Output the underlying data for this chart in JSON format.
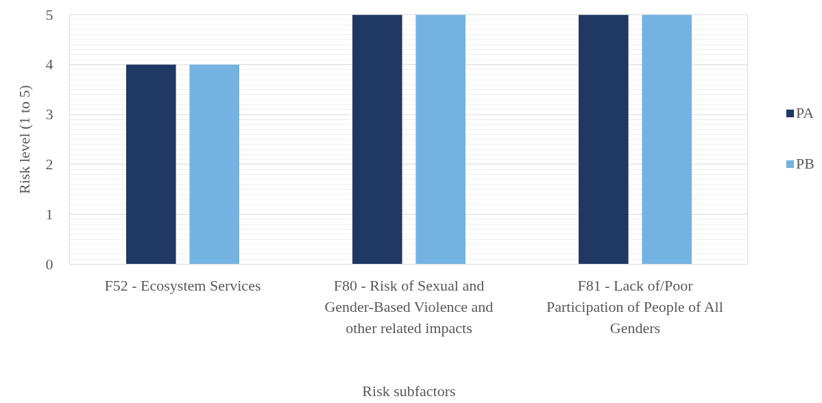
{
  "chart_data": {
    "type": "bar",
    "xlabel": "Risk subfactors",
    "ylabel": "Risk level (1 to 5)",
    "categories": [
      "F52 - Ecosystem Services",
      "F80 - Risk of Sexual and Gender-Based Violence and other related impacts",
      "F81 - Lack of/Poor Participation of People of All Genders"
    ],
    "series": [
      {
        "name": "PA",
        "color": "#203864",
        "values": [
          4,
          5,
          5
        ]
      },
      {
        "name": "PB",
        "color": "#74b3e1",
        "values": [
          4,
          5,
          5
        ]
      }
    ],
    "ylim": [
      0,
      5
    ],
    "yticks": [
      0,
      1,
      2,
      3,
      4,
      5
    ],
    "grid": "y",
    "legend": "right"
  }
}
